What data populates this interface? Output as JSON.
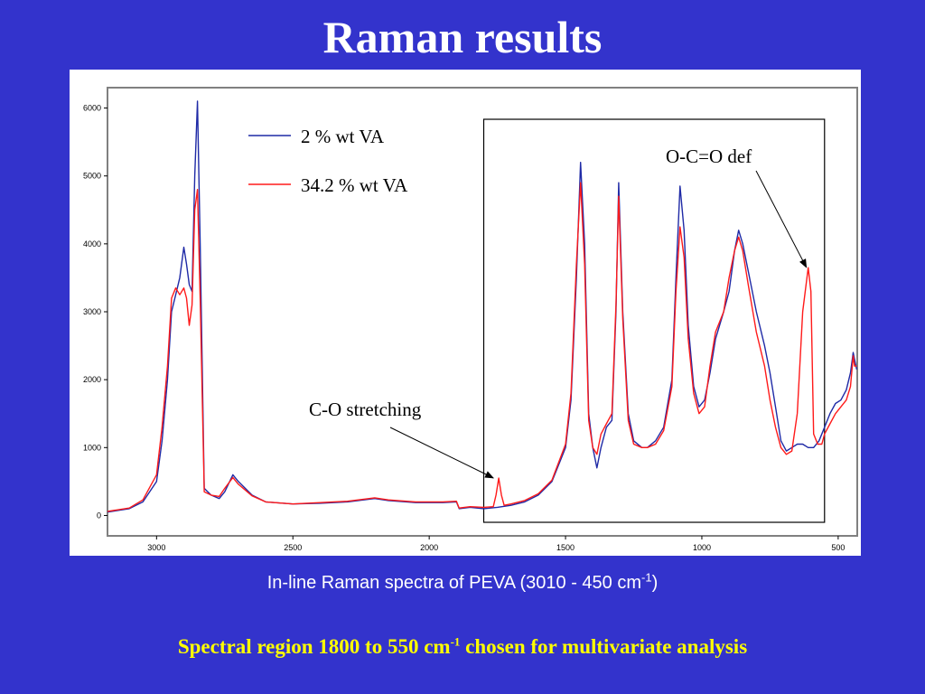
{
  "slide": {
    "title": "Raman results",
    "caption_main": "In-line Raman spectra of PEVA (3010 - 450 cm",
    "caption_sup": "-1",
    "caption_end": ")",
    "conclusion_main": "Spectral region 1800 to 550 cm",
    "conclusion_sup": "-1",
    "conclusion_end": " chosen for multivariate analysis"
  },
  "colors": {
    "background": "#3333cc",
    "title": "#ffffff",
    "conclusion": "#ffff00",
    "series_2pct": "#1f2aa6",
    "series_34pct": "#ff1a1a"
  },
  "chart_data": {
    "type": "line",
    "x_axis": {
      "range": [
        3180,
        430
      ],
      "ticks": [
        3000,
        2500,
        2000,
        1500,
        1000,
        500
      ],
      "reversed": true
    },
    "y_axis": {
      "range": [
        -300,
        6300
      ],
      "ticks": [
        0,
        1000,
        2000,
        3000,
        4000,
        5000,
        6000
      ]
    },
    "grid": false,
    "legend_position": "top-left",
    "highlight_box": {
      "x_range": [
        1800,
        550
      ]
    },
    "annotations": [
      {
        "text": "C-O stretching",
        "points_to": [
          1745,
          500
        ]
      },
      {
        "text": "O-C=O def",
        "points_to": [
          610,
          3600
        ]
      }
    ],
    "series": [
      {
        "name": "2 % wt VA",
        "points": [
          [
            3180,
            50
          ],
          [
            3100,
            100
          ],
          [
            3050,
            200
          ],
          [
            3000,
            500
          ],
          [
            2980,
            1100
          ],
          [
            2960,
            2000
          ],
          [
            2945,
            3000
          ],
          [
            2930,
            3250
          ],
          [
            2915,
            3500
          ],
          [
            2900,
            3950
          ],
          [
            2890,
            3700
          ],
          [
            2880,
            3400
          ],
          [
            2870,
            3300
          ],
          [
            2860,
            5000
          ],
          [
            2850,
            6100
          ],
          [
            2840,
            4000
          ],
          [
            2825,
            400
          ],
          [
            2800,
            300
          ],
          [
            2770,
            250
          ],
          [
            2750,
            350
          ],
          [
            2720,
            600
          ],
          [
            2700,
            500
          ],
          [
            2650,
            300
          ],
          [
            2600,
            200
          ],
          [
            2500,
            170
          ],
          [
            2400,
            180
          ],
          [
            2300,
            200
          ],
          [
            2200,
            250
          ],
          [
            2150,
            220
          ],
          [
            2050,
            190
          ],
          [
            1950,
            190
          ],
          [
            1900,
            200
          ],
          [
            1890,
            100
          ],
          [
            1850,
            120
          ],
          [
            1800,
            100
          ],
          [
            1750,
            120
          ],
          [
            1700,
            150
          ],
          [
            1650,
            200
          ],
          [
            1600,
            300
          ],
          [
            1550,
            500
          ],
          [
            1500,
            1000
          ],
          [
            1480,
            1700
          ],
          [
            1460,
            3500
          ],
          [
            1445,
            5200
          ],
          [
            1430,
            4000
          ],
          [
            1415,
            1500
          ],
          [
            1400,
            1000
          ],
          [
            1385,
            700
          ],
          [
            1370,
            1000
          ],
          [
            1350,
            1300
          ],
          [
            1330,
            1400
          ],
          [
            1315,
            3000
          ],
          [
            1305,
            4900
          ],
          [
            1290,
            3000
          ],
          [
            1270,
            1500
          ],
          [
            1250,
            1100
          ],
          [
            1220,
            1000
          ],
          [
            1200,
            1000
          ],
          [
            1170,
            1100
          ],
          [
            1140,
            1300
          ],
          [
            1110,
            2000
          ],
          [
            1095,
            3500
          ],
          [
            1080,
            4850
          ],
          [
            1065,
            4200
          ],
          [
            1050,
            2800
          ],
          [
            1030,
            1900
          ],
          [
            1010,
            1600
          ],
          [
            990,
            1700
          ],
          [
            970,
            2100
          ],
          [
            950,
            2600
          ],
          [
            920,
            3000
          ],
          [
            900,
            3300
          ],
          [
            880,
            3900
          ],
          [
            865,
            4200
          ],
          [
            850,
            4000
          ],
          [
            830,
            3600
          ],
          [
            800,
            3000
          ],
          [
            770,
            2500
          ],
          [
            750,
            2100
          ],
          [
            730,
            1600
          ],
          [
            710,
            1100
          ],
          [
            690,
            950
          ],
          [
            670,
            1000
          ],
          [
            650,
            1050
          ],
          [
            630,
            1050
          ],
          [
            610,
            1000
          ],
          [
            590,
            1000
          ],
          [
            570,
            1100
          ],
          [
            550,
            1300
          ],
          [
            530,
            1500
          ],
          [
            510,
            1650
          ],
          [
            490,
            1700
          ],
          [
            470,
            1850
          ],
          [
            455,
            2100
          ],
          [
            445,
            2400
          ],
          [
            440,
            2300
          ],
          [
            432,
            2150
          ]
        ]
      },
      {
        "name": "34.2 % wt VA",
        "points": [
          [
            3180,
            60
          ],
          [
            3100,
            110
          ],
          [
            3050,
            230
          ],
          [
            3000,
            600
          ],
          [
            2980,
            1300
          ],
          [
            2960,
            2200
          ],
          [
            2945,
            3200
          ],
          [
            2930,
            3350
          ],
          [
            2915,
            3250
          ],
          [
            2900,
            3350
          ],
          [
            2890,
            3200
          ],
          [
            2880,
            2800
          ],
          [
            2870,
            3100
          ],
          [
            2860,
            4500
          ],
          [
            2850,
            4800
          ],
          [
            2840,
            3200
          ],
          [
            2825,
            350
          ],
          [
            2800,
            300
          ],
          [
            2770,
            280
          ],
          [
            2750,
            400
          ],
          [
            2720,
            560
          ],
          [
            2700,
            460
          ],
          [
            2650,
            290
          ],
          [
            2600,
            200
          ],
          [
            2500,
            170
          ],
          [
            2400,
            190
          ],
          [
            2300,
            210
          ],
          [
            2200,
            260
          ],
          [
            2150,
            230
          ],
          [
            2050,
            200
          ],
          [
            1950,
            200
          ],
          [
            1900,
            210
          ],
          [
            1890,
            110
          ],
          [
            1850,
            130
          ],
          [
            1800,
            120
          ],
          [
            1765,
            130
          ],
          [
            1755,
            300
          ],
          [
            1745,
            550
          ],
          [
            1735,
            300
          ],
          [
            1725,
            150
          ],
          [
            1700,
            170
          ],
          [
            1650,
            220
          ],
          [
            1600,
            320
          ],
          [
            1550,
            520
          ],
          [
            1500,
            1050
          ],
          [
            1480,
            1800
          ],
          [
            1460,
            3700
          ],
          [
            1445,
            4900
          ],
          [
            1430,
            3700
          ],
          [
            1415,
            1400
          ],
          [
            1400,
            1000
          ],
          [
            1385,
            900
          ],
          [
            1370,
            1200
          ],
          [
            1350,
            1350
          ],
          [
            1330,
            1500
          ],
          [
            1315,
            3100
          ],
          [
            1305,
            4700
          ],
          [
            1290,
            2900
          ],
          [
            1270,
            1400
          ],
          [
            1250,
            1050
          ],
          [
            1220,
            1000
          ],
          [
            1200,
            1000
          ],
          [
            1170,
            1050
          ],
          [
            1140,
            1250
          ],
          [
            1110,
            1900
          ],
          [
            1095,
            3300
          ],
          [
            1080,
            4250
          ],
          [
            1065,
            3800
          ],
          [
            1050,
            2600
          ],
          [
            1030,
            1800
          ],
          [
            1010,
            1500
          ],
          [
            990,
            1600
          ],
          [
            970,
            2200
          ],
          [
            950,
            2700
          ],
          [
            920,
            3000
          ],
          [
            900,
            3500
          ],
          [
            880,
            3900
          ],
          [
            865,
            4100
          ],
          [
            850,
            3900
          ],
          [
            830,
            3400
          ],
          [
            800,
            2700
          ],
          [
            770,
            2200
          ],
          [
            750,
            1700
          ],
          [
            730,
            1300
          ],
          [
            710,
            1000
          ],
          [
            690,
            900
          ],
          [
            670,
            950
          ],
          [
            650,
            1500
          ],
          [
            630,
            3000
          ],
          [
            610,
            3650
          ],
          [
            600,
            3300
          ],
          [
            590,
            1200
          ],
          [
            575,
            1050
          ],
          [
            560,
            1050
          ],
          [
            550,
            1200
          ],
          [
            530,
            1350
          ],
          [
            510,
            1500
          ],
          [
            490,
            1600
          ],
          [
            470,
            1700
          ],
          [
            455,
            1900
          ],
          [
            445,
            2350
          ],
          [
            440,
            2200
          ],
          [
            432,
            2200
          ]
        ]
      }
    ]
  }
}
